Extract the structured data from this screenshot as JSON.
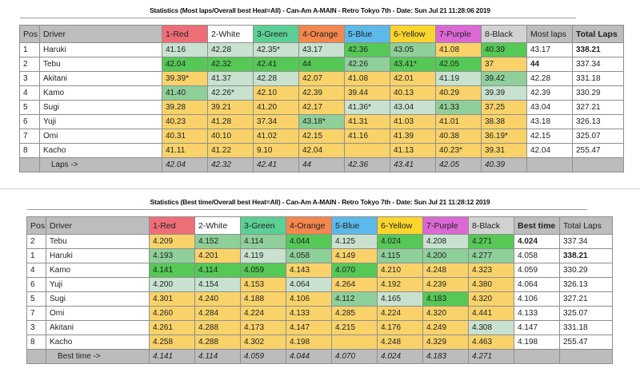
{
  "top_table": {
    "title": "Statistics (Most laps/Overall best Heat=All) - Can-Am A-MAIN - Retro Tokyo 7th - Date: Sun Jul 21 11:28:06 2019",
    "headers": [
      "Pos",
      "Driver",
      "1-Red",
      "2-White",
      "3-Green",
      "4-Orange",
      "5-Blue",
      "6-Yellow",
      "7-Purple",
      "8-Black",
      "Most laps",
      "Total Laps"
    ],
    "rows": [
      {
        "pos": "1",
        "driver": "Haruki",
        "heats": [
          "41.16",
          "42.28",
          "42.35*",
          "43.17",
          "42.36",
          "43.05",
          "41.08",
          "40.39"
        ],
        "shade": [
          "light",
          "light",
          "light",
          "light",
          "best",
          "mid",
          "low",
          "best"
        ],
        "most": "43.17",
        "total": "338.21"
      },
      {
        "pos": "2",
        "driver": "Tebu",
        "heats": [
          "42.04",
          "42.32",
          "42.41",
          "44",
          "42.26",
          "43.41*",
          "42.05",
          "37"
        ],
        "shade": [
          "best",
          "best",
          "best",
          "best",
          "mid",
          "best",
          "best",
          "low"
        ],
        "most": "44",
        "total": "337.34"
      },
      {
        "pos": "3",
        "driver": "Akitani",
        "heats": [
          "39.39*",
          "41.37",
          "42.28",
          "42.07",
          "41.08",
          "42.01",
          "41.19",
          "39.42"
        ],
        "shade": [
          "low",
          "light",
          "light",
          "low",
          "low",
          "low",
          "light",
          "mid"
        ],
        "most": "42.28",
        "total": "331.18"
      },
      {
        "pos": "4",
        "driver": "Kamo",
        "heats": [
          "41.40",
          "42.26*",
          "42.10",
          "42.39",
          "39.44",
          "40.13",
          "40.29",
          "39.39"
        ],
        "shade": [
          "mid",
          "light",
          "low",
          "low",
          "low",
          "low",
          "low",
          "light"
        ],
        "most": "42.39",
        "total": "330.29"
      },
      {
        "pos": "5",
        "driver": "Sugi",
        "heats": [
          "39.28",
          "39.21",
          "41.20",
          "42.17",
          "41.36*",
          "43.04",
          "41.33",
          "37.25"
        ],
        "shade": [
          "low",
          "low",
          "low",
          "low",
          "light",
          "light",
          "mid",
          "low"
        ],
        "most": "43.04",
        "total": "327.21"
      },
      {
        "pos": "6",
        "driver": "Yuji",
        "heats": [
          "40.23",
          "41.28",
          "37.34",
          "43.18*",
          "41.31",
          "41.03",
          "41.01",
          "38.38"
        ],
        "shade": [
          "low",
          "low",
          "low",
          "mid",
          "low",
          "low",
          "low",
          "low"
        ],
        "most": "43.18",
        "total": "326.13"
      },
      {
        "pos": "7",
        "driver": "Omi",
        "heats": [
          "40.31",
          "40.10",
          "41.02",
          "42.15",
          "41.16",
          "41.39",
          "40.38",
          "36.19*"
        ],
        "shade": [
          "low",
          "low",
          "low",
          "low",
          "low",
          "low",
          "low",
          "low"
        ],
        "most": "42.15",
        "total": "325.07"
      },
      {
        "pos": "8",
        "driver": "Kacho",
        "heats": [
          "41.11",
          "41.22",
          "9.10",
          "42.04",
          "",
          "41.13",
          "40.23*",
          "39.31"
        ],
        "shade": [
          "low",
          "low",
          "low",
          "low",
          "low",
          "low",
          "low",
          "low"
        ],
        "most": "42.04",
        "total": "255.47"
      }
    ],
    "footer_label": "Laps ->",
    "footer_values": [
      "42.04",
      "42.32",
      "42.41",
      "44",
      "42.36",
      "43.41",
      "42.05",
      "40.39"
    ]
  },
  "bottom_table": {
    "title": "Statistics (Best time/Overall best Heat=All) - Can-Am A-MAIN - Retro Tokyo 7th - Date: Sun Jul 21 11:28:12 2019",
    "headers": [
      "Pos",
      "Driver",
      "1-Red",
      "2-White",
      "3-Green",
      "4-Orange",
      "5-Blue",
      "6-Yellow",
      "7-Purple",
      "8-Black",
      "Best time",
      "Total Laps"
    ],
    "rows": [
      {
        "pos": "2",
        "driver": "Tebu",
        "heats": [
          "4.209",
          "4.152",
          "4.114",
          "4.044",
          "4.125",
          "4.024",
          "4.208",
          "4.271"
        ],
        "shade": [
          "low",
          "mid",
          "mid",
          "best",
          "light",
          "best",
          "light",
          "best"
        ],
        "best": "4.024",
        "total": "337.34"
      },
      {
        "pos": "1",
        "driver": "Haruki",
        "heats": [
          "4.193",
          "4.201",
          "4.119",
          "4.058",
          "4.149",
          "4.115",
          "4.200",
          "4.277"
        ],
        "shade": [
          "mid",
          "low",
          "light",
          "mid",
          "low",
          "mid",
          "mid",
          "mid"
        ],
        "best": "4.058",
        "total": "338.21"
      },
      {
        "pos": "4",
        "driver": "Kamo",
        "heats": [
          "4.141",
          "4.114",
          "4.059",
          "4.143",
          "4.070",
          "4.210",
          "4.248",
          "4.323"
        ],
        "shade": [
          "best",
          "best",
          "best",
          "low",
          "best",
          "low",
          "low",
          "low"
        ],
        "best": "4.059",
        "total": "330.29"
      },
      {
        "pos": "6",
        "driver": "Yuji",
        "heats": [
          "4.200",
          "4.154",
          "4.153",
          "4.064",
          "4.264",
          "4.192",
          "4.239",
          "4.380"
        ],
        "shade": [
          "light",
          "light",
          "low",
          "light",
          "low",
          "low",
          "low",
          "low"
        ],
        "best": "4.064",
        "total": "326.13"
      },
      {
        "pos": "5",
        "driver": "Sugi",
        "heats": [
          "4.301",
          "4.240",
          "4.188",
          "4.106",
          "4.112",
          "4.165",
          "4.183",
          "4.320"
        ],
        "shade": [
          "low",
          "low",
          "low",
          "low",
          "mid",
          "light",
          "best",
          "low"
        ],
        "best": "4.106",
        "total": "327.21"
      },
      {
        "pos": "7",
        "driver": "Omi",
        "heats": [
          "4.260",
          "4.284",
          "4.224",
          "4.133",
          "4.285",
          "4.224",
          "4.320",
          "4.441"
        ],
        "shade": [
          "low",
          "low",
          "low",
          "low",
          "low",
          "low",
          "low",
          "low"
        ],
        "best": "4.133",
        "total": "325.07"
      },
      {
        "pos": "3",
        "driver": "Akitani",
        "heats": [
          "4.261",
          "4.288",
          "4.173",
          "4.147",
          "4.215",
          "4.176",
          "4.249",
          "4.308"
        ],
        "shade": [
          "low",
          "low",
          "low",
          "low",
          "low",
          "low",
          "low",
          "light"
        ],
        "best": "4.147",
        "total": "331.18"
      },
      {
        "pos": "8",
        "driver": "Kacho",
        "heats": [
          "4.258",
          "4.288",
          "4.302",
          "4.198",
          "",
          "4.248",
          "4.329",
          "4.463"
        ],
        "shade": [
          "low",
          "low",
          "low",
          "low",
          "low",
          "low",
          "low",
          "low"
        ],
        "best": "4.198",
        "total": "255.47"
      }
    ],
    "footer_label": "Best time ->",
    "footer_values": [
      "4.141",
      "4.114",
      "4.059",
      "4.044",
      "4.070",
      "4.024",
      "4.183",
      "4.271"
    ]
  },
  "bold_cells": {
    "top_most": [
      "44"
    ],
    "top_total": [
      "338.21"
    ],
    "bottom_best": [
      "4.024"
    ],
    "bottom_total": [
      "338.21"
    ]
  }
}
